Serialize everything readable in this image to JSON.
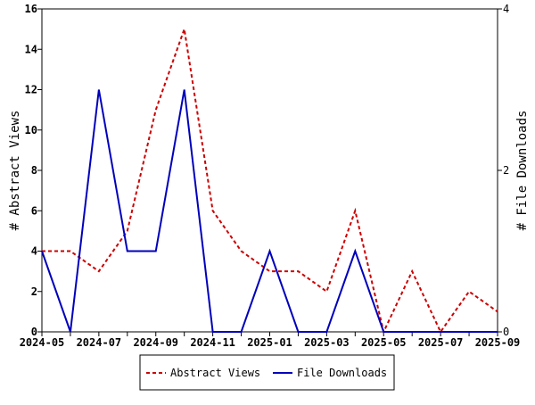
{
  "chart_data": {
    "type": "line",
    "x": [
      "2024-05",
      "2024-06",
      "2024-07",
      "2024-08",
      "2024-09",
      "2024-10",
      "2024-11",
      "2024-12",
      "2025-01",
      "2025-02",
      "2025-03",
      "2025-04",
      "2025-05",
      "2025-06",
      "2025-07",
      "2025-08",
      "2025-09"
    ],
    "x_tick_labels": [
      "2024-05",
      "2024-07",
      "2024-09",
      "2024-11",
      "2025-01",
      "2025-03",
      "2025-05",
      "2025-07",
      "2025-09"
    ],
    "ylabel": "# Abstract Views",
    "ylabel_right": "# File Downloads",
    "ylim": [
      0,
      16
    ],
    "ylim_right": [
      0,
      4
    ],
    "y_ticks": [
      0,
      2,
      4,
      6,
      8,
      10,
      12,
      14,
      16
    ],
    "y_ticks_right": [
      0,
      2,
      4
    ],
    "grid": false,
    "legend_placement": "bottom",
    "series": [
      {
        "name": "Abstract Views",
        "axis": "left",
        "color": "#cc0000",
        "style": "dashed",
        "values": [
          4,
          4,
          3,
          5,
          11,
          15,
          6,
          4,
          3,
          3,
          2,
          6,
          0,
          3,
          0,
          2,
          1
        ]
      },
      {
        "name": "File Downloads",
        "axis": "right",
        "color": "#0000bb",
        "style": "solid",
        "values": [
          1,
          0,
          3,
          1,
          1,
          3,
          0,
          0,
          1,
          0,
          0,
          1,
          0,
          0,
          0,
          0,
          0
        ]
      }
    ]
  }
}
